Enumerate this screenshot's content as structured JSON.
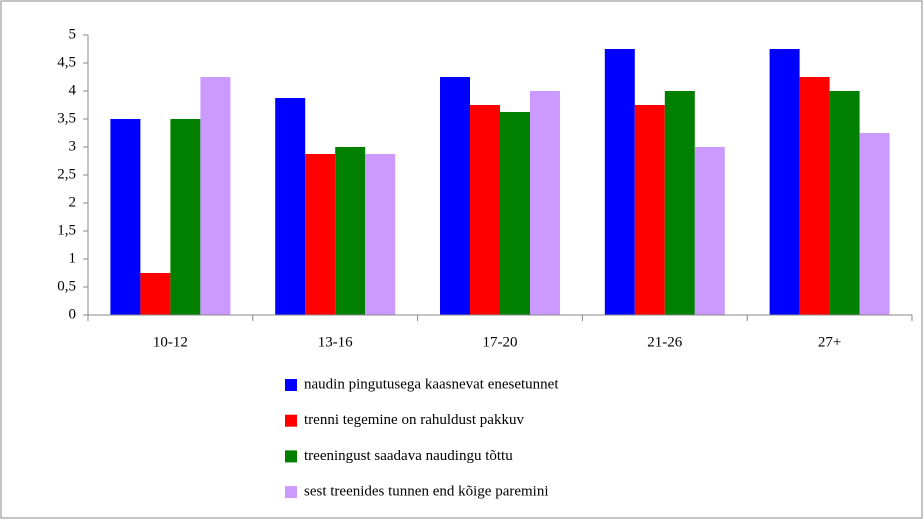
{
  "chart_data": {
    "type": "bar",
    "categories": [
      "10-12",
      "13-16",
      "17-20",
      "21-26",
      "27+"
    ],
    "series": [
      {
        "name": "naudin pingutusega kaasnevat enesetunnet",
        "color": "#0000ff",
        "values": [
          3.5,
          3.875,
          4.25,
          4.75,
          4.75
        ]
      },
      {
        "name": "trenni tegemine on rahuldust pakkuv",
        "color": "#ff0000",
        "values": [
          0.75,
          2.875,
          3.75,
          3.75,
          4.25
        ]
      },
      {
        "name": "treeningust saadava naudingu tõttu",
        "color": "#008000",
        "values": [
          3.5,
          3,
          3.625,
          4,
          4
        ]
      },
      {
        "name": "sest treenides tunnen end kõige paremini",
        "color": "#cc99ff",
        "values": [
          4.25,
          2.875,
          4,
          3,
          3.25
        ]
      }
    ],
    "ylim": [
      0,
      5
    ],
    "yticks": [
      0,
      {
        "value": 0.5,
        "label": "0,5"
      },
      1,
      {
        "value": 1.5,
        "label": "1,5"
      },
      2,
      {
        "value": 2.5,
        "label": "2,5"
      },
      3,
      {
        "value": 3.5,
        "label": "3,5"
      },
      4,
      {
        "value": 4.5,
        "label": "4,5"
      },
      5
    ],
    "grid": false,
    "legend": "bottom"
  }
}
